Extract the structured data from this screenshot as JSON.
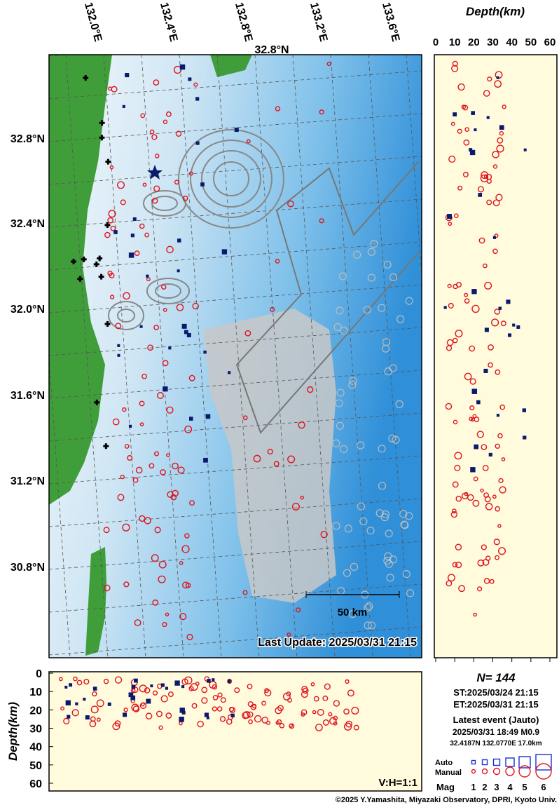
{
  "map": {
    "lon_labels": [
      "132.0°E",
      "132.4°E",
      "132.8°E",
      "133.2°E",
      "133.6°E"
    ],
    "inset_lat_label": "32.8°N",
    "lat_labels": [
      "32.8°N",
      "32.4°N",
      "32.0°N",
      "31.6°N",
      "31.2°N",
      "30.8°N"
    ],
    "scale_label": "50 km",
    "last_update": "Last Update: 2025/03/31 21:15"
  },
  "depth_panel": {
    "title": "Depth(km)",
    "ticks": [
      0,
      10,
      20,
      30,
      40,
      50,
      60
    ]
  },
  "section_panel": {
    "axis_label": "Depth(km)",
    "ticks": [
      0,
      10,
      20,
      30,
      40,
      50,
      60
    ],
    "ratio_label": "V:H=1:1"
  },
  "info": {
    "count": "N= 144",
    "start": "ST:2025/03/24 21:15",
    "end": "ET:2025/03/31 21:15",
    "latest_title": "Latest event (Jauto)",
    "latest_time": "2025/03/31 18:49 M0.9",
    "latest_loc": "32.4187N 132.0770E 17.0km"
  },
  "legend": {
    "auto": "Auto",
    "manual": "Manual",
    "mag": "Mag",
    "mags": [
      "1",
      "2",
      "3",
      "4",
      "5",
      "6"
    ]
  },
  "footer": "©2025 Y.Yamashita, Miyazaki Observatory, DPRI, Kyoto Univ."
}
